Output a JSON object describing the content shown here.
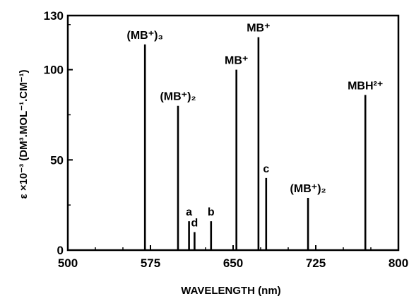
{
  "chart_data": {
    "type": "bar",
    "xlabel": "WAVELENGTH (nm)",
    "ylabel": "ε ×10⁻³ (DM³.MOL⁻¹.CM⁻¹)",
    "xlim": [
      500,
      800
    ],
    "ylim": [
      0,
      130
    ],
    "xticks": [
      500,
      575,
      650,
      725,
      800
    ],
    "yticks": [
      0,
      50,
      100,
      130
    ],
    "grid": false,
    "peaks": [
      {
        "x": 570,
        "y": 114,
        "label": "(MB⁺)₃"
      },
      {
        "x": 600,
        "y": 80,
        "label": "(MB⁺)₂"
      },
      {
        "x": 610,
        "y": 16,
        "label": "a"
      },
      {
        "x": 615,
        "y": 10,
        "label": "d"
      },
      {
        "x": 630,
        "y": 16,
        "label": "b"
      },
      {
        "x": 653,
        "y": 100,
        "label": "MB⁺"
      },
      {
        "x": 673,
        "y": 118,
        "label": "MB⁺"
      },
      {
        "x": 680,
        "y": 40,
        "label": "c"
      },
      {
        "x": 718,
        "y": 29,
        "label": "(MB⁺)₂"
      },
      {
        "x": 770,
        "y": 86,
        "label": "MBH²⁺"
      }
    ]
  }
}
